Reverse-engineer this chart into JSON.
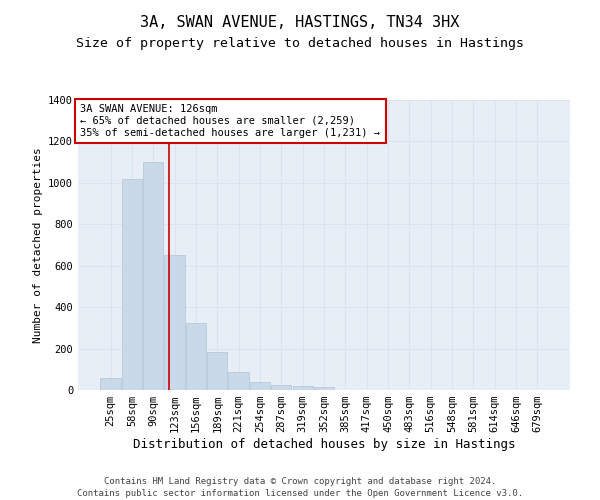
{
  "title": "3A, SWAN AVENUE, HASTINGS, TN34 3HX",
  "subtitle": "Size of property relative to detached houses in Hastings",
  "xlabel": "Distribution of detached houses by size in Hastings",
  "ylabel": "Number of detached properties",
  "footer_line1": "Contains HM Land Registry data © Crown copyright and database right 2024.",
  "footer_line2": "Contains public sector information licensed under the Open Government Licence v3.0.",
  "categories": [
    "25sqm",
    "58sqm",
    "90sqm",
    "123sqm",
    "156sqm",
    "189sqm",
    "221sqm",
    "254sqm",
    "287sqm",
    "319sqm",
    "352sqm",
    "385sqm",
    "417sqm",
    "450sqm",
    "483sqm",
    "516sqm",
    "548sqm",
    "581sqm",
    "614sqm",
    "646sqm",
    "679sqm"
  ],
  "values": [
    60,
    1020,
    1100,
    650,
    325,
    185,
    85,
    40,
    25,
    20,
    13,
    0,
    0,
    0,
    0,
    0,
    0,
    0,
    0,
    0,
    0
  ],
  "bar_color": "#c9d9ea",
  "bar_edge_color": "#b0c4d8",
  "grid_color": "#d8e2ee",
  "background_color": "#e8eef6",
  "annotation_text_line1": "3A SWAN AVENUE: 126sqm",
  "annotation_text_line2": "← 65% of detached houses are smaller (2,259)",
  "annotation_text_line3": "35% of semi-detached houses are larger (1,231) →",
  "vline_x_index": 2.72,
  "vline_color": "#cc0000",
  "annotation_box_facecolor": "#ffffff",
  "annotation_box_edgecolor": "#cc0000",
  "ylim": [
    0,
    1400
  ],
  "yticks": [
    0,
    200,
    400,
    600,
    800,
    1000,
    1200,
    1400
  ],
  "title_fontsize": 11,
  "subtitle_fontsize": 9.5,
  "ylabel_fontsize": 8,
  "xlabel_fontsize": 9,
  "tick_fontsize": 7.5,
  "annotation_fontsize": 7.5,
  "footer_fontsize": 6.5
}
